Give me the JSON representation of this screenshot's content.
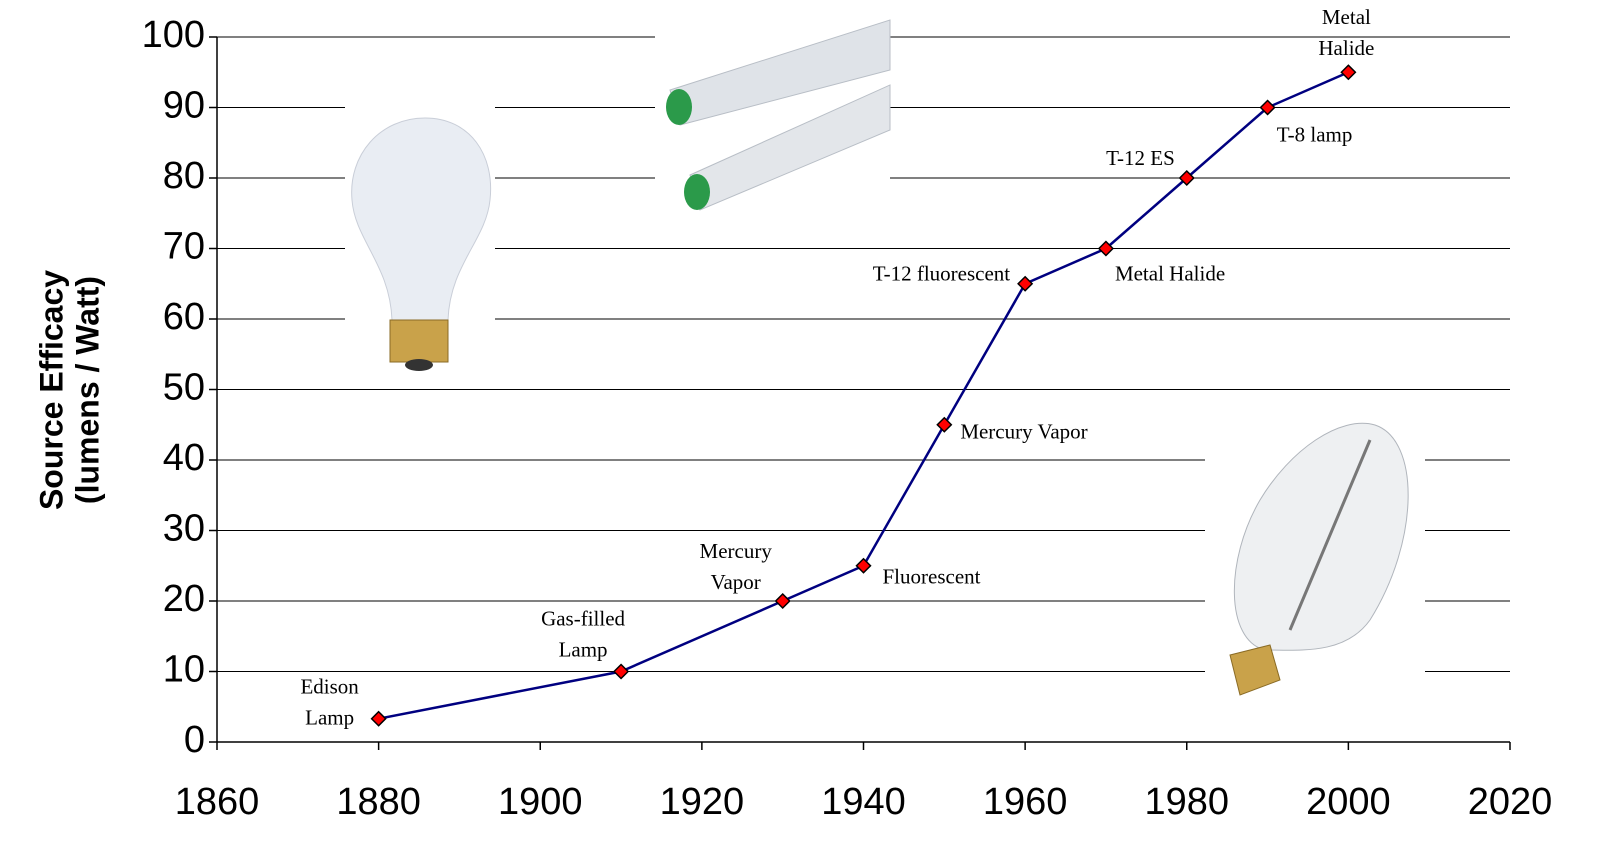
{
  "chart_data": {
    "type": "line",
    "ylabel": [
      "Source Efficacy",
      "(lumens / Watt)"
    ],
    "x": [
      1880,
      1910,
      1930,
      1940,
      1950,
      1960,
      1970,
      1980,
      1990,
      2000
    ],
    "series": [
      {
        "color": "#000080",
        "marker_color": "#ff0000",
        "values": [
          3.3,
          10,
          20,
          25,
          45,
          65,
          70,
          80,
          90,
          95
        ]
      }
    ],
    "point_labels": [
      [
        "Edison",
        "Lamp"
      ],
      [
        "Gas-filled",
        "Lamp"
      ],
      [
        "Mercury",
        "Vapor"
      ],
      [
        "Fluorescent"
      ],
      [
        "Mercury Vapor"
      ],
      [
        "T-12 fluorescent"
      ],
      [
        "Metal Halide"
      ],
      [
        "T-12 ES"
      ],
      [
        "T-8 lamp"
      ],
      [
        "Metal",
        "Halide"
      ]
    ],
    "xlim": [
      1860,
      2020
    ],
    "xticks": [
      1860,
      1880,
      1900,
      1920,
      1940,
      1960,
      1980,
      2000,
      2020
    ],
    "ylim": [
      0,
      100
    ],
    "yticks": [
      0,
      10,
      20,
      30,
      40,
      50,
      60,
      70,
      80,
      90,
      100
    ],
    "grid": true
  }
}
